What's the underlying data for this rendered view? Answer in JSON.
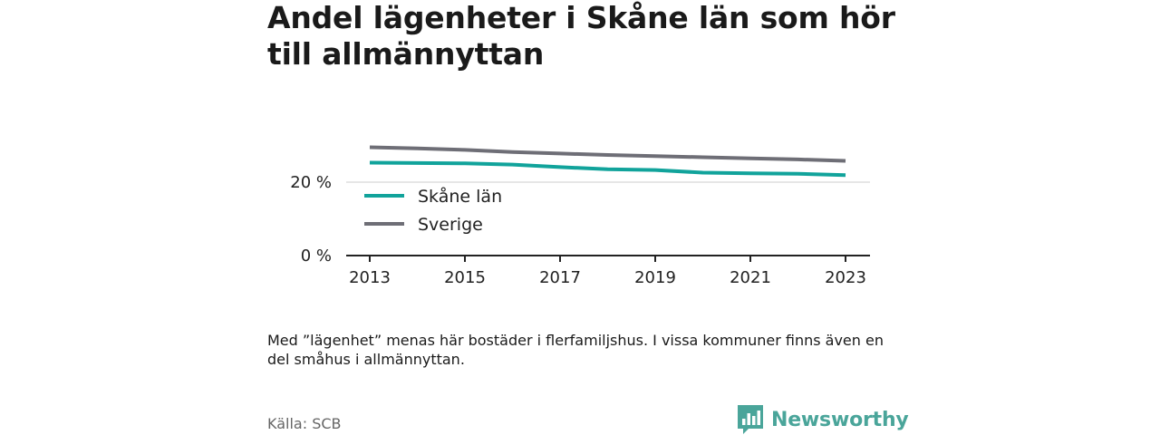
{
  "title": "Andel lägenheter i Skåne län som hör till allmännyttan",
  "note": "Med ”lägenhet” menas här bostäder i flerfamiljshus. I vissa kommuner finns även en del småhus i allmännyttan.",
  "source": "Källa: SCB",
  "brand": {
    "name": "Newsworthy",
    "icon": "newsworthy-logo-icon",
    "color": "#4aa59a"
  },
  "chart_data": {
    "type": "line",
    "title": "Andel lägenheter i Skåne län som hör till allmännyttan",
    "xlabel": "",
    "ylabel": "",
    "x": [
      2013,
      2014,
      2015,
      2016,
      2017,
      2018,
      2019,
      2020,
      2021,
      2022,
      2023
    ],
    "x_ticks": [
      "2013",
      "2015",
      "2017",
      "2019",
      "2021",
      "2023"
    ],
    "y_ticks": [
      "0 %",
      "20 %"
    ],
    "xlim": [
      2013,
      2023
    ],
    "ylim": [
      0,
      30
    ],
    "grid": "horizontal",
    "legend_placement": "bottom-left",
    "series": [
      {
        "name": "Skåne län",
        "color": "#11a39b",
        "values": [
          25.3,
          25.2,
          25.1,
          24.8,
          24.1,
          23.5,
          23.3,
          22.6,
          22.4,
          22.3,
          21.9
        ]
      },
      {
        "name": "Sverige",
        "color": "#6e6e76",
        "values": [
          29.5,
          29.2,
          28.8,
          28.2,
          27.8,
          27.4,
          27.1,
          26.8,
          26.5,
          26.2,
          25.8
        ]
      }
    ]
  }
}
